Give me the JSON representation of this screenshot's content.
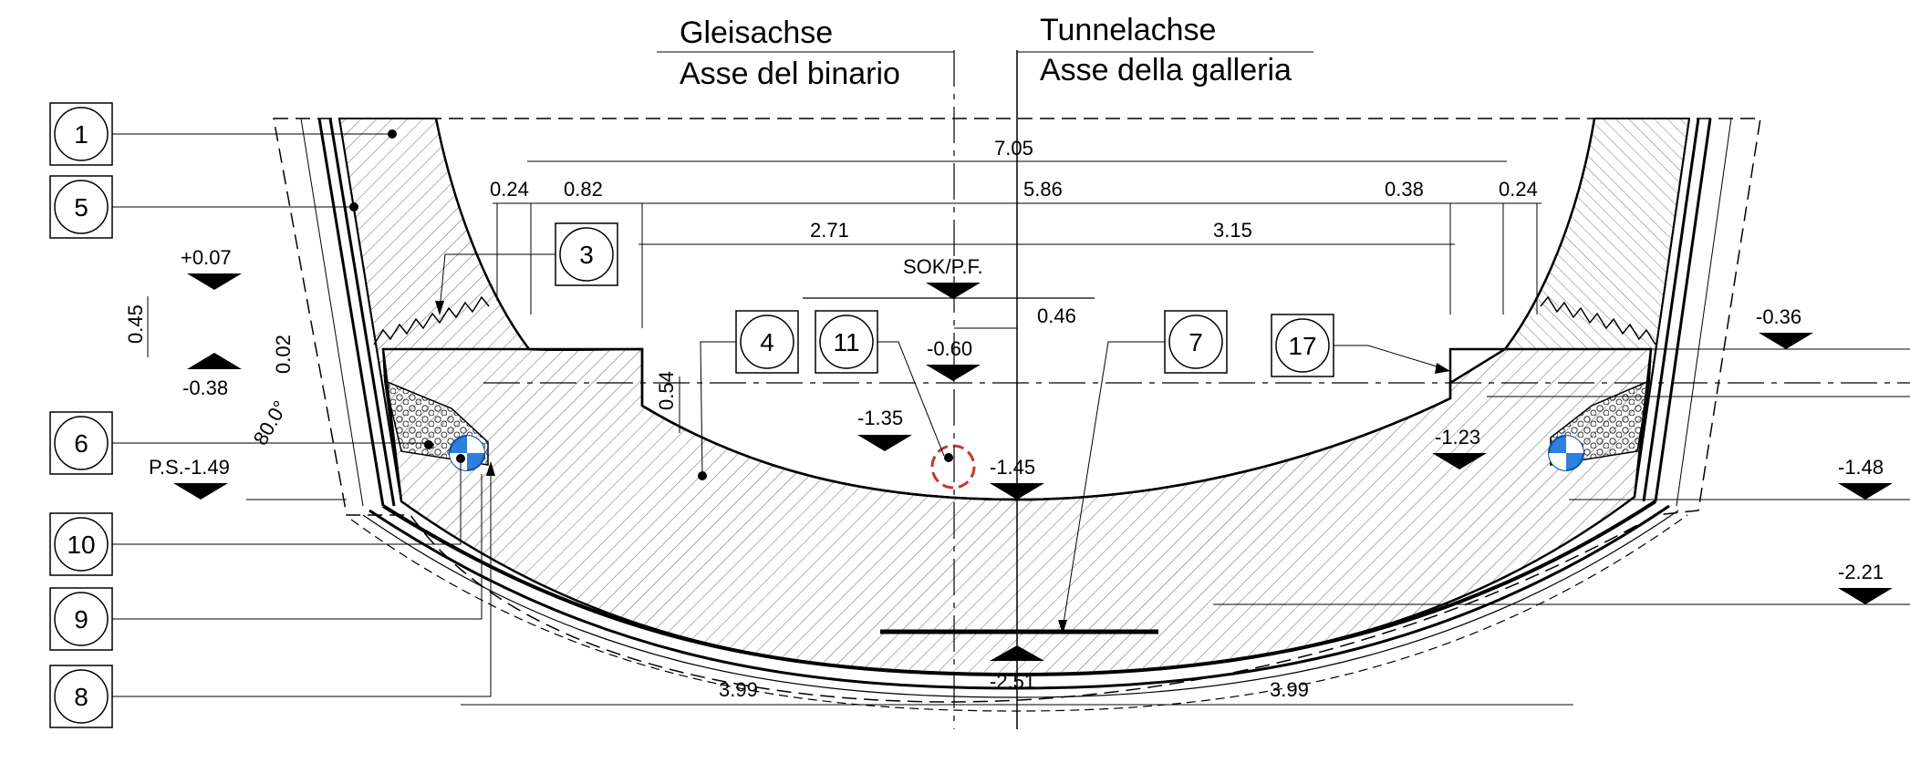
{
  "axes": {
    "track_de": "Gleisachse",
    "track_it": "Asse del binario",
    "tunnel_de": "Tunnelachse",
    "tunnel_it": "Asse della galleria"
  },
  "callouts_left": [
    "1",
    "5",
    "6",
    "10",
    "9",
    "8"
  ],
  "callouts_inner": [
    "3",
    "4",
    "11",
    "7",
    "17"
  ],
  "dimensions": {
    "total_width": "7.05",
    "d_024_left": "0.24",
    "d_082": "0.82",
    "d_586": "5.86",
    "d_038": "0.38",
    "d_024_right": "0.24",
    "d_271": "2.71",
    "d_315": "3.15",
    "d_046": "0.46",
    "d_045": "0.45",
    "d_002": "0.02",
    "d_054": "0.54",
    "bottom_left": "3.99",
    "bottom_right": "3.99"
  },
  "levels": {
    "plus007": "+0.07",
    "minus038": "-0.38",
    "ps": "P.S.-1.49",
    "sok": "SOK/P.F.",
    "minus060": "-0.60",
    "minus135": "-1.35",
    "minus145": "-1.45",
    "minus123": "-1.23",
    "minus036": "-0.36",
    "minus148": "-1.48",
    "minus221": "-2.21",
    "minus251": "-2.51"
  },
  "angle": "80.0°",
  "colors": {
    "pipe": "#2d7fe0",
    "drain": "#c0392b",
    "layer": "#888888"
  }
}
